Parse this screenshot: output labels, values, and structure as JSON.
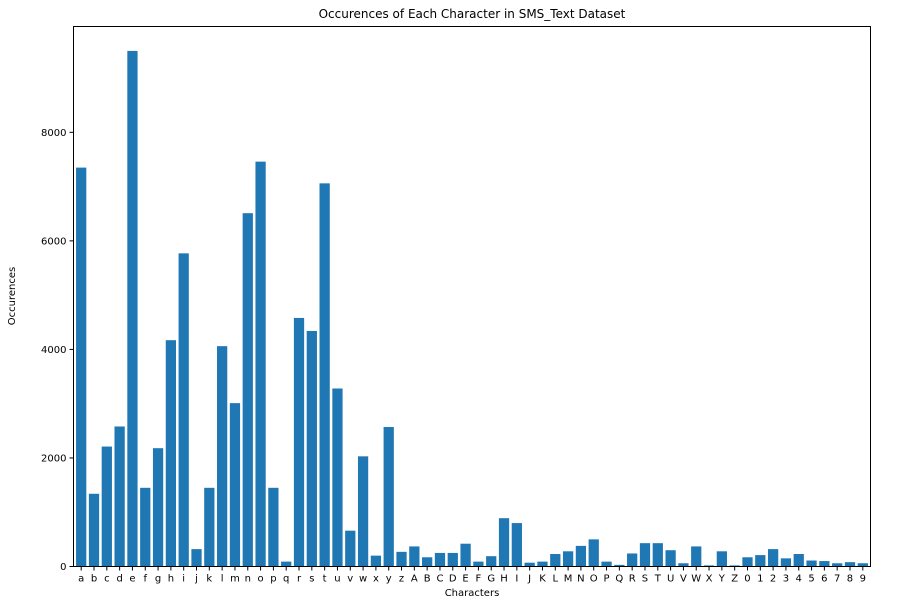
{
  "chart_data": {
    "type": "bar",
    "title": "Occurences of Each Character in SMS_Text Dataset",
    "xlabel": "Characters",
    "ylabel": "Occurences",
    "ylim": [
      0,
      9950
    ],
    "yticks": [
      0,
      2000,
      4000,
      6000,
      8000
    ],
    "grid": false,
    "bar_color": "#1f77b4",
    "categories": [
      "a",
      "b",
      "c",
      "d",
      "e",
      "f",
      "g",
      "h",
      "i",
      "j",
      "k",
      "l",
      "m",
      "n",
      "o",
      "p",
      "q",
      "r",
      "s",
      "t",
      "u",
      "v",
      "w",
      "x",
      "y",
      "z",
      "A",
      "B",
      "C",
      "D",
      "E",
      "F",
      "G",
      "H",
      "I",
      "J",
      "K",
      "L",
      "M",
      "N",
      "O",
      "P",
      "Q",
      "R",
      "S",
      "T",
      "U",
      "V",
      "W",
      "X",
      "Y",
      "Z",
      "0",
      "1",
      "2",
      "3",
      "4",
      "5",
      "6",
      "7",
      "8",
      "9"
    ],
    "values": [
      7350,
      1340,
      2210,
      2580,
      9500,
      1450,
      2180,
      4170,
      5770,
      320,
      1450,
      4060,
      3010,
      6510,
      7460,
      1450,
      90,
      4580,
      4340,
      7060,
      3280,
      660,
      2030,
      200,
      2570,
      270,
      370,
      170,
      250,
      250,
      420,
      90,
      190,
      890,
      800,
      70,
      90,
      230,
      280,
      380,
      500,
      90,
      30,
      240,
      430,
      430,
      300,
      60,
      370,
      20,
      280,
      20,
      170,
      210,
      320,
      150,
      230,
      110,
      100,
      60,
      80,
      60
    ]
  }
}
